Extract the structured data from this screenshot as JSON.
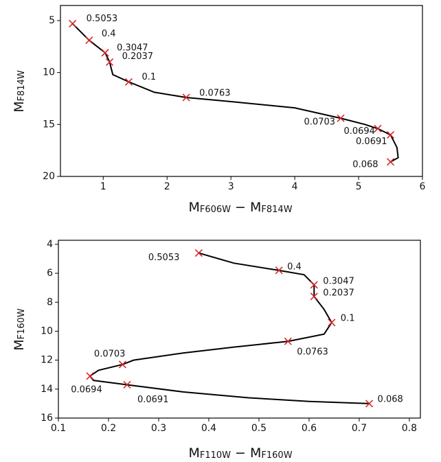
{
  "chart_data": [
    {
      "type": "line",
      "xlabel": [
        "M",
        "F606W",
        " − M",
        "F814W"
      ],
      "ylabel": [
        "M",
        "F814W"
      ],
      "xlim": [
        0.33,
        6
      ],
      "ylim": [
        20,
        3.55
      ],
      "xticks": [
        1,
        2,
        3,
        4,
        5,
        6
      ],
      "yticks": [
        5,
        10,
        15,
        20
      ],
      "series": [
        {
          "color": "#000000",
          "x": [
            0.52,
            0.78,
            1.03,
            1.1,
            1.15,
            1.4,
            1.8,
            2.3,
            3,
            4,
            4.72,
            5.1,
            5.3,
            5.5,
            5.6,
            5.62,
            5.5
          ],
          "values": [
            5.3,
            6.9,
            8.1,
            9.0,
            10.2,
            10.9,
            11.9,
            12.4,
            12.8,
            13.4,
            14.4,
            15.0,
            15.4,
            16.0,
            17.2,
            18.2,
            18.6
          ]
        }
      ],
      "markers": {
        "color": "#d62728",
        "x": [
          0.52,
          0.78,
          1.03,
          1.1,
          1.4,
          2.3,
          4.72,
          5.3,
          5.5,
          5.5
        ],
        "values": [
          5.3,
          6.9,
          8.1,
          9.0,
          10.9,
          12.4,
          14.4,
          15.4,
          16.0,
          18.6
        ],
        "labels": [
          "0.5053",
          "0.4",
          "0.3047",
          "0.2037",
          "0.1",
          "0.0763",
          "0.0703",
          "0.0694",
          "0.0691",
          "0.068"
        ]
      }
    },
    {
      "type": "line",
      "xlabel": [
        "M",
        "F110W",
        " − M",
        "F160W"
      ],
      "ylabel": [
        "M",
        "F160W"
      ],
      "xlim": [
        0.1,
        0.822
      ],
      "ylim": [
        16,
        3.72
      ],
      "xticks": [
        0.1,
        0.2,
        0.3,
        0.4,
        0.5,
        0.6,
        0.7,
        0.8
      ],
      "yticks": [
        4,
        6,
        8,
        10,
        12,
        14,
        16
      ],
      "series": [
        {
          "color": "#000000",
          "x": [
            0.38,
            0.45,
            0.54,
            0.59,
            0.61,
            0.61,
            0.63,
            0.645,
            0.63,
            0.558,
            0.45,
            0.35,
            0.25,
            0.228,
            0.18,
            0.163,
            0.17,
            0.237,
            0.35,
            0.48,
            0.6,
            0.72
          ],
          "values": [
            4.6,
            5.3,
            5.8,
            6.1,
            6.8,
            7.6,
            8.5,
            9.4,
            10.2,
            10.7,
            11.1,
            11.5,
            12.0,
            12.3,
            12.7,
            13.1,
            13.4,
            13.7,
            14.2,
            14.6,
            14.85,
            15.0
          ]
        }
      ],
      "markers": {
        "color": "#d62728",
        "x": [
          0.38,
          0.54,
          0.61,
          0.61,
          0.645,
          0.558,
          0.228,
          0.163,
          0.237,
          0.72
        ],
        "values": [
          4.6,
          5.8,
          6.8,
          7.6,
          9.4,
          10.7,
          12.3,
          13.1,
          13.7,
          15.0
        ],
        "labels": [
          "0.5053",
          "0.4",
          "0.3047",
          "0.2037",
          "0.1",
          "0.0763",
          "0.0703",
          "0.0694",
          "0.0691",
          "0.068"
        ]
      }
    }
  ]
}
